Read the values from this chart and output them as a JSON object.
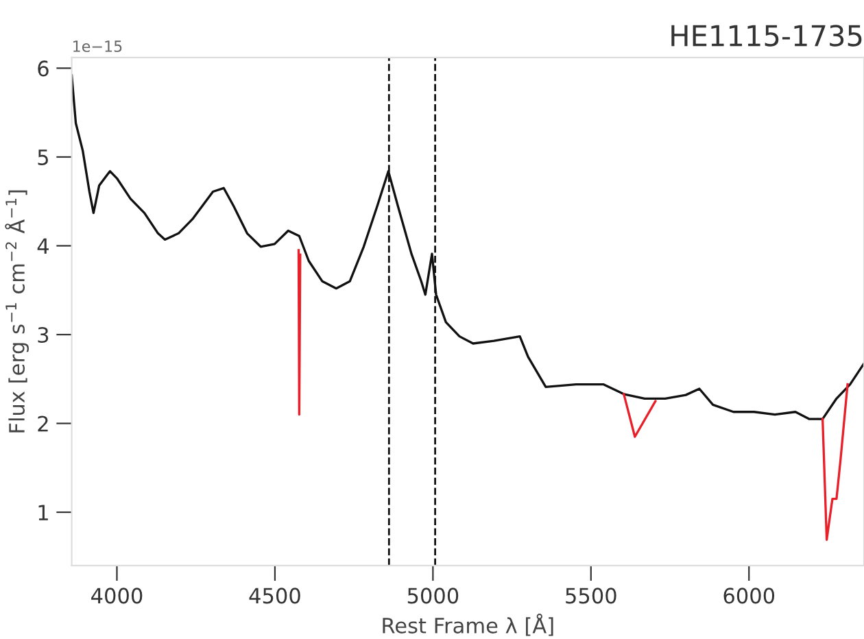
{
  "chart_data": {
    "type": "line",
    "title": "HE1115-1735",
    "xlabel": "Rest Frame λ [Å]",
    "ylabel": "Flux [erg s$^{−1}$ cm$^{−2}$ Å$^{−1}$]",
    "annotations": [
      "1e−15"
    ],
    "xlim": [
      3857,
      6364
    ],
    "ylim": [
      0.4,
      6.12
    ],
    "xticks": [
      4000,
      4500,
      5000,
      5500,
      6000
    ],
    "yticks": [
      1,
      2,
      3,
      4,
      5,
      6
    ],
    "grid": false,
    "series": [
      {
        "color": "#111111",
        "x": [
          3857,
          3870,
          3892,
          3913,
          3926,
          3944,
          3978,
          4000,
          4043,
          4087,
          4130,
          4152,
          4195,
          4239,
          4304,
          4338,
          4369,
          4412,
          4455,
          4499,
          4542,
          4577,
          4607,
          4650,
          4694,
          4737,
          4781,
          4824,
          4859,
          4889,
          4932,
          4963,
          4976,
          4997,
          5010,
          5041,
          5084,
          5127,
          5193,
          5275,
          5301,
          5357,
          5453,
          5539,
          5604,
          5670,
          5735,
          5800,
          5843,
          5886,
          5951,
          6016,
          6082,
          6147,
          6190,
          6233,
          6277,
          6320,
          6363
        ],
        "values": [
          5.92,
          5.38,
          5.07,
          4.61,
          4.37,
          4.68,
          4.84,
          4.76,
          4.53,
          4.37,
          4.14,
          4.07,
          4.14,
          4.3,
          4.61,
          4.65,
          4.45,
          4.14,
          3.99,
          4.02,
          4.17,
          4.11,
          3.83,
          3.6,
          3.52,
          3.6,
          3.99,
          4.45,
          4.84,
          4.45,
          3.91,
          3.6,
          3.45,
          3.91,
          3.45,
          3.14,
          2.98,
          2.9,
          2.93,
          2.98,
          2.75,
          2.41,
          2.44,
          2.44,
          2.33,
          2.28,
          2.28,
          2.32,
          2.39,
          2.21,
          2.13,
          2.13,
          2.1,
          2.13,
          2.05,
          2.05,
          2.28,
          2.44,
          2.67
        ]
      },
      {
        "color": "#e8202a",
        "x": [
          4575,
          4577,
          4580,
          4600,
          5604,
          5639,
          5704,
          5720,
          6233,
          6246,
          6264,
          6277,
          6290,
          6312
        ],
        "values": [
          3.95,
          2.1,
          3.9,
          null,
          2.33,
          1.85,
          2.25,
          null,
          2.05,
          0.69,
          1.15,
          1.15,
          1.6,
          2.44
        ]
      }
    ],
    "ref_lines": [
      {
        "axis": "x",
        "value": 4861,
        "color": "#111111",
        "line_style": "dashed"
      },
      {
        "axis": "x",
        "value": 5007,
        "color": "#111111",
        "line_style": "dashed"
      }
    ]
  }
}
